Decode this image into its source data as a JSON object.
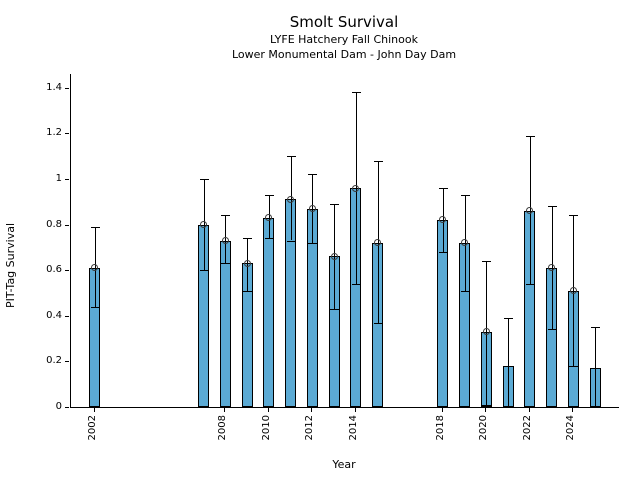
{
  "chart_data": {
    "type": "bar",
    "title": "Smolt Survival",
    "subtitle1": "LYFE Hatchery Fall Chinook",
    "subtitle2": "Lower Monumental Dam - John Day Dam",
    "xlabel": "Year",
    "ylabel": "PIT-Tag Survival",
    "xlim": [
      2000.9,
      2026.1
    ],
    "ylim": [
      0,
      1.46
    ],
    "grid": false,
    "legend": "none",
    "bar_color": "#5BAAD4",
    "bar_edge_color": "#000000",
    "bar_width_years": 0.5,
    "yticks": [
      {
        "value": 0,
        "label": "0"
      },
      {
        "value": 0.2,
        "label": "0.2"
      },
      {
        "value": 0.4,
        "label": "0.4"
      },
      {
        "value": 0.6,
        "label": "0.6"
      },
      {
        "value": 0.8,
        "label": "0.8"
      },
      {
        "value": 1,
        "label": "1"
      },
      {
        "value": 1.2,
        "label": "1.2"
      },
      {
        "value": 1.4,
        "label": "1.4"
      }
    ],
    "xticks": [
      {
        "value": 2002,
        "label": "2002"
      },
      {
        "value": 2008,
        "label": "2008"
      },
      {
        "value": 2010,
        "label": "2010"
      },
      {
        "value": 2012,
        "label": "2012"
      },
      {
        "value": 2014,
        "label": "2014"
      },
      {
        "value": 2018,
        "label": "2018"
      },
      {
        "value": 2020,
        "label": "2020"
      },
      {
        "value": 2022,
        "label": "2022"
      },
      {
        "value": 2024,
        "label": "2024"
      }
    ],
    "series": [
      {
        "year": 2002,
        "value": 0.61,
        "ci_low": 0.44,
        "ci_high": 0.79,
        "marker": true
      },
      {
        "year": 2007,
        "value": 0.8,
        "ci_low": 0.6,
        "ci_high": 1.0,
        "marker": true
      },
      {
        "year": 2008,
        "value": 0.73,
        "ci_low": 0.63,
        "ci_high": 0.84,
        "marker": true
      },
      {
        "year": 2009,
        "value": 0.63,
        "ci_low": 0.51,
        "ci_high": 0.74,
        "marker": true
      },
      {
        "year": 2010,
        "value": 0.83,
        "ci_low": 0.74,
        "ci_high": 0.93,
        "marker": true
      },
      {
        "year": 2011,
        "value": 0.91,
        "ci_low": 0.73,
        "ci_high": 1.1,
        "marker": true
      },
      {
        "year": 2012,
        "value": 0.87,
        "ci_low": 0.72,
        "ci_high": 1.02,
        "marker": true
      },
      {
        "year": 2013,
        "value": 0.66,
        "ci_low": 0.43,
        "ci_high": 0.89,
        "marker": true
      },
      {
        "year": 2014,
        "value": 0.96,
        "ci_low": 0.54,
        "ci_high": 1.38,
        "marker": true
      },
      {
        "year": 2015,
        "value": 0.72,
        "ci_low": 0.37,
        "ci_high": 1.08,
        "marker": true
      },
      {
        "year": 2018,
        "value": 0.82,
        "ci_low": 0.68,
        "ci_high": 0.96,
        "marker": true
      },
      {
        "year": 2019,
        "value": 0.72,
        "ci_low": 0.51,
        "ci_high": 0.93,
        "marker": true
      },
      {
        "year": 2020,
        "value": 0.33,
        "ci_low": 0.01,
        "ci_high": 0.64,
        "marker": true
      },
      {
        "year": 2021,
        "value": 0.18,
        "ci_low": 0,
        "ci_high": 0.39,
        "marker": false
      },
      {
        "year": 2022,
        "value": 0.86,
        "ci_low": 0.54,
        "ci_high": 1.19,
        "marker": true
      },
      {
        "year": 2023,
        "value": 0.61,
        "ci_low": 0.34,
        "ci_high": 0.88,
        "marker": true
      },
      {
        "year": 2024,
        "value": 0.51,
        "ci_low": 0.18,
        "ci_high": 0.84,
        "marker": true
      },
      {
        "year": 2025,
        "value": 0.17,
        "ci_low": 0,
        "ci_high": 0.35,
        "marker": false
      }
    ]
  }
}
